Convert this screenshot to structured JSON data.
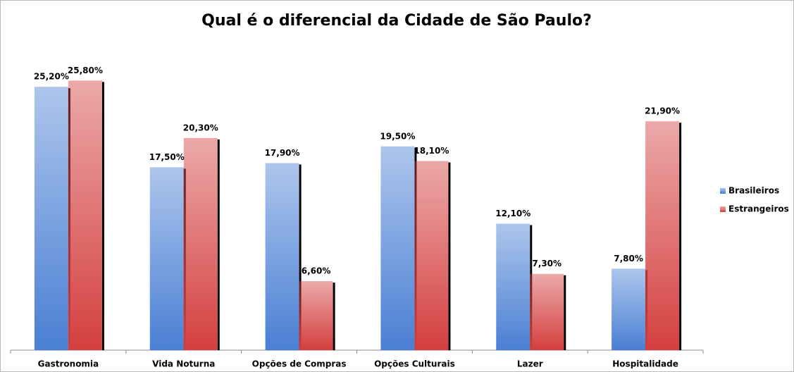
{
  "chart_data": {
    "type": "bar",
    "title": "Qual é o diferencial da Cidade de São Paulo?",
    "categories": [
      "Gastronomia",
      "Vida Noturna",
      "Opções de Compras",
      "Opções Culturais",
      "Lazer",
      "Hospitalidade"
    ],
    "series": [
      {
        "name": "Brasileiros",
        "color": "#4a7fd4",
        "values": [
          25.2,
          17.5,
          17.9,
          19.5,
          12.1,
          7.8
        ],
        "value_labels": [
          "25,20%",
          "17,50%",
          "17,90%",
          "19,50%",
          "12,10%",
          "7,80%"
        ]
      },
      {
        "name": "Estrangeiros",
        "color": "#d43f3f",
        "values": [
          25.8,
          20.3,
          6.6,
          18.1,
          7.3,
          21.9
        ],
        "value_labels": [
          "25,80%",
          "20,30%",
          "6,60%",
          "18,10%",
          "7,30%",
          "21,90%"
        ]
      }
    ],
    "ylim": [
      0,
      30
    ],
    "legend": "right"
  }
}
